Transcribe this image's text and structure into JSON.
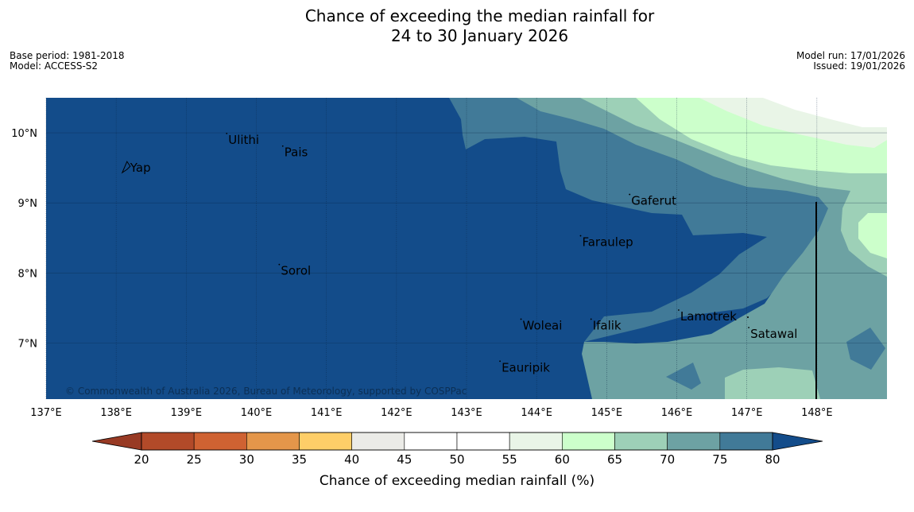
{
  "title": {
    "line1": "Chance of exceeding the median rainfall for",
    "line2": "24 to 30 January 2026"
  },
  "meta": {
    "base_period": "Base period: 1981-2018",
    "model": "Model: ACCESS-S2",
    "model_run": "Model run: 17/01/2026",
    "issued": "Issued: 19/01/2026"
  },
  "copyright": "© Commonwealth of Australia 2026, Bureau of Meteorology, supported by COSPPac",
  "map": {
    "lon_range": [
      137,
      149
    ],
    "lat_range": [
      6.2,
      10.5
    ],
    "lon_ticks": [
      {
        "value": 137,
        "label": "137°E"
      },
      {
        "value": 138,
        "label": "138°E"
      },
      {
        "value": 139,
        "label": "139°E"
      },
      {
        "value": 140,
        "label": "140°E"
      },
      {
        "value": 141,
        "label": "141°E"
      },
      {
        "value": 142,
        "label": "142°E"
      },
      {
        "value": 143,
        "label": "143°E"
      },
      {
        "value": 144,
        "label": "144°E"
      },
      {
        "value": 145,
        "label": "145°E"
      },
      {
        "value": 146,
        "label": "146°E"
      },
      {
        "value": 147,
        "label": "147°E"
      },
      {
        "value": 148,
        "label": "148°E"
      }
    ],
    "lat_ticks": [
      {
        "value": 10,
        "label": "10°N"
      },
      {
        "value": 9,
        "label": "9°N"
      },
      {
        "value": 8,
        "label": "8°N"
      },
      {
        "value": 7,
        "label": "7°N"
      }
    ],
    "places": [
      {
        "name": "Yap",
        "lon": 138.2,
        "lat": 9.5
      },
      {
        "name": "Ulithi",
        "lon": 139.6,
        "lat": 9.9
      },
      {
        "name": "Pais",
        "lon": 140.4,
        "lat": 9.72
      },
      {
        "name": "Gaferut",
        "lon": 145.35,
        "lat": 9.03
      },
      {
        "name": "Faraulep",
        "lon": 144.65,
        "lat": 8.44
      },
      {
        "name": "Sorol",
        "lon": 140.35,
        "lat": 8.03
      },
      {
        "name": "Lamotrek",
        "lon": 146.05,
        "lat": 7.38
      },
      {
        "name": "Woleai",
        "lon": 143.8,
        "lat": 7.25
      },
      {
        "name": "Ifalik",
        "lon": 144.8,
        "lat": 7.25
      },
      {
        "name": "Satawal",
        "lon": 147.05,
        "lat": 7.13
      },
      {
        "name": "Eauripik",
        "lon": 143.5,
        "lat": 6.65
      }
    ]
  },
  "colorbar": {
    "title": "Chance of exceeding median rainfall (%)",
    "under_color": "#983a24",
    "over_color": "#134c8a",
    "bins": [
      {
        "from": 20,
        "to": 25,
        "color": "#b24a29"
      },
      {
        "from": 25,
        "to": 30,
        "color": "#cf6232"
      },
      {
        "from": 30,
        "to": 35,
        "color": "#e4964a"
      },
      {
        "from": 35,
        "to": 40,
        "color": "#fece68"
      },
      {
        "from": 40,
        "to": 45,
        "color": "#ebebe7"
      },
      {
        "from": 45,
        "to": 50,
        "color": "#ffffff"
      },
      {
        "from": 50,
        "to": 55,
        "color": "#ffffff"
      },
      {
        "from": 55,
        "to": 60,
        "color": "#e9f5e7"
      },
      {
        "from": 60,
        "to": 65,
        "color": "#ccffcb"
      },
      {
        "from": 65,
        "to": 70,
        "color": "#9dd0b7"
      },
      {
        "from": 70,
        "to": 75,
        "color": "#6da2a3"
      },
      {
        "from": 75,
        "to": 80,
        "color": "#417a98"
      }
    ],
    "ticks": [
      "20",
      "25",
      "30",
      "35",
      "40",
      "45",
      "50",
      "55",
      "60",
      "65",
      "70",
      "75",
      "80"
    ]
  }
}
